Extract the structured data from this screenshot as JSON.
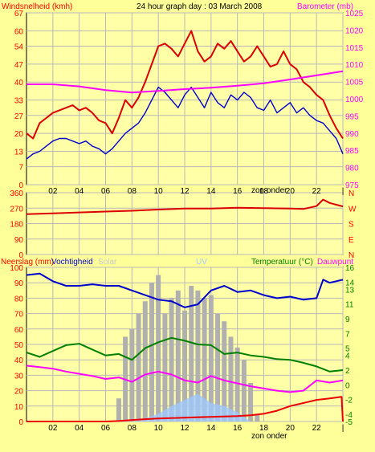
{
  "colors": {
    "background": "#ffff99",
    "plot_background": "#ffffa8",
    "grid": "#b8b8b8",
    "wind": "#dd0000",
    "wind_gust": "#ff0000",
    "wind_avg": "#0000cc",
    "barometer": "#ff00ff",
    "direction": "#dd0000",
    "humidity": "#0000cc",
    "temperature": "#008000",
    "dewpoint": "#ff00ff",
    "rain": "#ee0000",
    "solar": "#b0b0b0",
    "uv": "#a0c8ff",
    "left_axis_label": "#ff0000",
    "right_axis_label": "#ff00ff",
    "temp_axis": "#008000",
    "dew_axis": "#ff00ff"
  },
  "header": {
    "title": "24 hour graph day : 03 March 2008",
    "wind_label": "Windsnelheid (kmh)",
    "baro_label": "Barometer (mb)"
  },
  "xaxis": {
    "ticks": [
      "02",
      "04",
      "06",
      "08",
      "10",
      "12",
      "14",
      "16",
      "18",
      "20",
      "22",
      "|"
    ],
    "sunset_label": "zon onder"
  },
  "panel_labels": {
    "rain": "Neerslag (mm)",
    "humidity": "Vochtigheid",
    "solar": "Solar",
    "uv": "UV",
    "temperature": "Temperatuur (°C)",
    "dewpoint": "Dauwpunt"
  },
  "direction_letters": [
    "N",
    "W",
    "S",
    "E",
    "N"
  ],
  "chart_data": [
    {
      "type": "line",
      "title": "24 hour graph day : 03 March 2008",
      "x_hours": [
        0,
        24
      ],
      "left_axis": {
        "label": "Windsnelheid (kmh)",
        "ticks": [
          67,
          60,
          54,
          47,
          40,
          33,
          27,
          20,
          13,
          7,
          0
        ],
        "range": [
          0,
          67
        ]
      },
      "right_axis": {
        "label": "Barometer (mb)",
        "ticks": [
          1025,
          1020,
          1015,
          1010,
          1005,
          1000,
          995,
          990,
          985,
          980,
          975
        ],
        "range": [
          975,
          1025
        ]
      },
      "series": [
        {
          "name": "Windsnelheid",
          "axis": "left",
          "x": [
            0,
            0.5,
            1,
            1.5,
            2,
            2.5,
            3,
            3.5,
            4,
            4.5,
            5,
            5.5,
            6,
            6.5,
            7,
            7.5,
            8,
            8.5,
            9,
            9.5,
            10,
            10.5,
            11,
            11.5,
            12,
            12.5,
            13,
            13.5,
            14,
            14.5,
            15,
            15.5,
            16,
            16.5,
            17,
            17.5,
            18,
            18.5,
            19,
            19.5,
            20,
            20.5,
            21,
            21.5,
            22,
            22.5,
            23,
            23.5,
            24
          ],
          "values": [
            20,
            18,
            24,
            26,
            28,
            29,
            30,
            31,
            29,
            30,
            28,
            25,
            24,
            20,
            26,
            33,
            30,
            34,
            40,
            47,
            54,
            55,
            53,
            50,
            55,
            60,
            52,
            48,
            50,
            55,
            53,
            56,
            52,
            48,
            50,
            54,
            50,
            46,
            47,
            52,
            47,
            45,
            40,
            38,
            35,
            33,
            27,
            22,
            18
          ]
        },
        {
          "name": "Windsnelheid gemiddeld",
          "axis": "left",
          "x": [
            0,
            0.5,
            1,
            1.5,
            2,
            2.5,
            3,
            3.5,
            4,
            4.5,
            5,
            5.5,
            6,
            6.5,
            7,
            7.5,
            8,
            8.5,
            9,
            9.5,
            10,
            10.5,
            11,
            11.5,
            12,
            12.5,
            13,
            13.5,
            14,
            14.5,
            15,
            15.5,
            16,
            16.5,
            17,
            17.5,
            18,
            18.5,
            19,
            19.5,
            20,
            20.5,
            21,
            21.5,
            22,
            22.5,
            23,
            23.5,
            24
          ],
          "values": [
            10,
            12,
            13,
            15,
            17,
            18,
            18,
            17,
            16,
            17,
            15,
            14,
            12,
            14,
            17,
            20,
            22,
            24,
            28,
            33,
            38,
            36,
            33,
            30,
            35,
            38,
            34,
            30,
            36,
            32,
            30,
            35,
            33,
            36,
            34,
            30,
            29,
            33,
            28,
            30,
            32,
            28,
            30,
            27,
            25,
            24,
            21,
            18,
            12
          ]
        },
        {
          "name": "Barometer",
          "axis": "right",
          "x": [
            0,
            2,
            4,
            6,
            8,
            10,
            12,
            14,
            16,
            18,
            20,
            22,
            24
          ],
          "values": [
            1004.2,
            1004.2,
            1003.6,
            1002.5,
            1001.8,
            1002.3,
            1002.8,
            1003.2,
            1003.8,
            1004.5,
            1005.6,
            1006.8,
            1008.0
          ]
        }
      ]
    },
    {
      "type": "line",
      "left_axis": {
        "ticks": [
          360,
          270,
          180,
          90,
          0
        ],
        "range": [
          0,
          360
        ]
      },
      "series": [
        {
          "name": "Windrichting",
          "x": [
            0,
            2,
            4,
            6,
            8,
            10,
            12,
            14,
            16,
            18,
            20,
            21,
            22,
            22.5,
            23,
            23.5,
            24
          ],
          "values": [
            235,
            240,
            245,
            250,
            255,
            262,
            268,
            268,
            272,
            270,
            268,
            265,
            282,
            320,
            300,
            290,
            280
          ]
        }
      ]
    },
    {
      "type": "line",
      "left_axis": {
        "label": "Neerslag (mm) / Vochtigheid",
        "ticks": [
          100,
          90,
          80,
          70,
          60,
          50,
          40,
          30,
          20,
          10,
          0
        ],
        "range": [
          0,
          100
        ]
      },
      "right_axis": {
        "label": "Temperatuur (°C) / Dauwpunt",
        "ticks": [
          16,
          14,
          13,
          11,
          9,
          7,
          5,
          4,
          2,
          0,
          -2,
          -4,
          -5
        ],
        "range": [
          -5,
          16
        ]
      },
      "series": [
        {
          "name": "Vochtigheid",
          "axis": "left",
          "x": [
            0,
            1,
            2,
            3,
            4,
            5,
            6,
            7,
            8,
            9,
            10,
            11,
            12,
            13,
            14,
            15,
            16,
            17,
            18,
            19,
            20,
            21,
            22,
            22.5,
            23,
            24
          ],
          "values": [
            95,
            96,
            91,
            88,
            88,
            89,
            88,
            88,
            85,
            82,
            79,
            78,
            74,
            76,
            85,
            88,
            84,
            85,
            82,
            80,
            81,
            79,
            80,
            92,
            90,
            92
          ]
        },
        {
          "name": "Temperatuur",
          "axis": "right",
          "x": [
            0,
            1,
            2,
            3,
            4,
            5,
            6,
            7,
            8,
            9,
            10,
            11,
            12,
            13,
            14,
            15,
            16,
            17,
            18,
            19,
            20,
            21,
            22,
            23,
            24
          ],
          "values": [
            4.4,
            3.8,
            4.6,
            5.4,
            5.6,
            4.8,
            4.0,
            4.2,
            3.4,
            5.0,
            5.8,
            6.4,
            6.0,
            5.5,
            5.4,
            4.2,
            4.4,
            4.0,
            3.8,
            3.5,
            3.4,
            3.0,
            2.5,
            1.8,
            2.0
          ]
        },
        {
          "name": "Dauwpunt",
          "axis": "right",
          "x": [
            0,
            1,
            2,
            3,
            4,
            5,
            6,
            7,
            8,
            9,
            10,
            11,
            12,
            13,
            14,
            15,
            16,
            17,
            18,
            19,
            20,
            21,
            22,
            23,
            24
          ],
          "values": [
            2.6,
            2.4,
            2.2,
            1.8,
            1.5,
            1.2,
            0.8,
            1.0,
            0.4,
            1.4,
            1.8,
            1.4,
            0.6,
            0.3,
            1.2,
            0.6,
            0.2,
            -0.2,
            -0.5,
            -0.8,
            -1.0,
            -0.8,
            0.6,
            0.3,
            0.6
          ]
        },
        {
          "name": "Neerslag",
          "axis": "left",
          "x": [
            0,
            6,
            7,
            8,
            9,
            10,
            12,
            14,
            16,
            17,
            18,
            19,
            20,
            21,
            22,
            23,
            23.9,
            24
          ],
          "values": [
            0,
            0,
            0.3,
            1,
            1.5,
            2,
            2.5,
            3,
            3.5,
            4,
            5,
            7,
            10,
            12,
            14,
            15,
            16,
            0
          ]
        },
        {
          "name": "Solar",
          "axis": "left",
          "x": [
            7,
            7.5,
            8,
            8.5,
            9,
            9.5,
            10,
            10.5,
            11,
            11.5,
            12,
            12.5,
            13,
            13.5,
            14,
            14.5,
            15,
            15.5,
            16,
            16.5,
            17,
            17.5
          ],
          "values": [
            15,
            55,
            60,
            70,
            78,
            90,
            95,
            70,
            80,
            85,
            72,
            88,
            85,
            80,
            82,
            70,
            65,
            55,
            48,
            40,
            25,
            5
          ]
        },
        {
          "name": "UV",
          "axis": "left",
          "x": [
            8,
            9,
            10,
            11,
            12,
            13,
            14,
            15,
            16,
            17
          ],
          "values": [
            0,
            2,
            5,
            10,
            14,
            18,
            12,
            10,
            6,
            0
          ]
        }
      ]
    }
  ]
}
